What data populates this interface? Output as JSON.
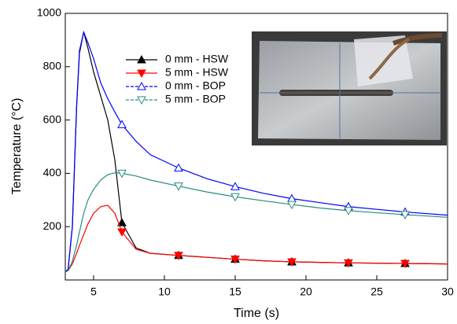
{
  "chart_data": {
    "type": "line",
    "xlabel": "Time (s)",
    "ylabel": "Temperature (°C)",
    "xlim": [
      3,
      30
    ],
    "ylim": [
      0,
      1000
    ],
    "xticks": [
      5,
      10,
      15,
      20,
      25,
      30
    ],
    "yticks": [
      200,
      400,
      600,
      800,
      1000
    ],
    "x": [
      3,
      3.2,
      3.5,
      3.8,
      4,
      4.3,
      4.6,
      5,
      5.5,
      6,
      6.5,
      7,
      8,
      9,
      11,
      13,
      15,
      17,
      19,
      21,
      23,
      25,
      27,
      30
    ],
    "markers_at": [
      7,
      11,
      15,
      19,
      23,
      27
    ],
    "legend": "upper left",
    "series": [
      {
        "name": "0 mm - HSW",
        "color": "#000000",
        "marker": "triangle-up",
        "filled": true,
        "dashed": false,
        "values": [
          30,
          40,
          200,
          650,
          850,
          930,
          870,
          780,
          690,
          600,
          450,
          215,
          120,
          100,
          92,
          85,
          78,
          72,
          68,
          66,
          64,
          63,
          62,
          60
        ]
      },
      {
        "name": "5 mm - HSW",
        "color": "#ff0000",
        "marker": "triangle-down",
        "filled": true,
        "dashed": false,
        "values": [
          30,
          35,
          60,
          100,
          130,
          170,
          210,
          250,
          275,
          280,
          250,
          180,
          115,
          100,
          92,
          85,
          78,
          72,
          68,
          66,
          64,
          63,
          62,
          60
        ]
      },
      {
        "name": "0 mm - BOP",
        "color": "#0000ff",
        "marker": "triangle-up",
        "filled": false,
        "dashed": true,
        "values": [
          30,
          40,
          200,
          650,
          860,
          930,
          890,
          830,
          740,
          680,
          630,
          583,
          520,
          470,
          420,
          380,
          350,
          325,
          305,
          290,
          275,
          265,
          255,
          243
        ]
      },
      {
        "name": "5 mm - BOP",
        "color": "#2a8c80",
        "marker": "triangle-down",
        "filled": false,
        "dashed": true,
        "values": [
          30,
          35,
          70,
          130,
          180,
          250,
          300,
          340,
          375,
          395,
          402,
          400,
          390,
          375,
          352,
          330,
          312,
          297,
          283,
          270,
          260,
          252,
          245,
          235
        ]
      }
    ]
  }
}
